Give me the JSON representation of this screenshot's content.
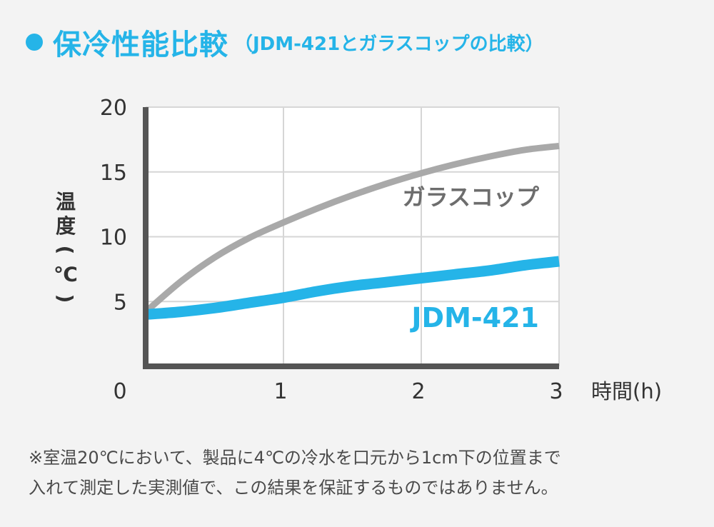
{
  "title": {
    "main": "保冷性能比較",
    "sub": "（JDM-421とガラスコップの比較）"
  },
  "colors": {
    "accent": "#25b4e8",
    "glass": "#a9a9a9",
    "axis": "#555555",
    "grid": "#d6d6d6",
    "plot_bg": "#ffffff"
  },
  "chart_data": {
    "type": "line",
    "xlabel": "時間(h)",
    "ylabel": "温度(℃)",
    "xlim": [
      0,
      3
    ],
    "ylim": [
      0,
      20
    ],
    "x_ticks": [
      "0",
      "1",
      "2",
      "3"
    ],
    "y_ticks": [
      "5",
      "10",
      "15",
      "20"
    ],
    "grid": true,
    "legend": "inline labels next to each line",
    "series": [
      {
        "name": "ガラスコップ",
        "color": "#a9a9a9",
        "x": [
          0,
          0.25,
          0.5,
          0.75,
          1,
          1.25,
          1.5,
          1.75,
          2,
          2.25,
          2.5,
          2.75,
          3
        ],
        "y": [
          4.2,
          6.5,
          8.4,
          9.9,
          11.1,
          12.2,
          13.2,
          14.1,
          14.9,
          15.6,
          16.2,
          16.7,
          17.0
        ]
      },
      {
        "name": "JDM-421",
        "color": "#25b4e8",
        "x": [
          0,
          0.25,
          0.5,
          0.75,
          1,
          1.25,
          1.5,
          1.75,
          2,
          2.25,
          2.5,
          2.75,
          3
        ],
        "y": [
          4.0,
          4.2,
          4.5,
          4.9,
          5.3,
          5.8,
          6.2,
          6.5,
          6.8,
          7.1,
          7.4,
          7.8,
          8.1
        ]
      }
    ]
  },
  "note": {
    "line1": "※室温20℃において、製品に4℃の冷水を口元から1cm下の位置まで",
    "line2": "入れて測定した実測値で、この結果を保証するものではありません。"
  }
}
